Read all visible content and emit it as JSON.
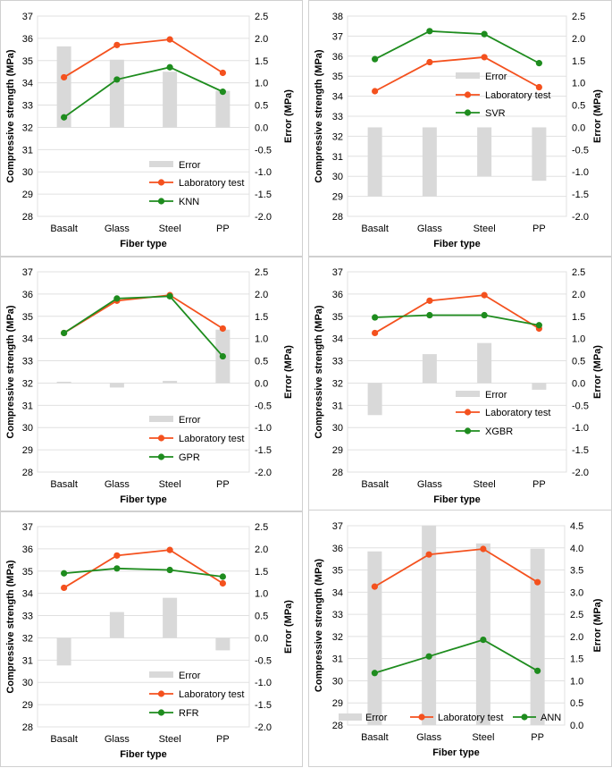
{
  "colors": {
    "error_bar": "#d9d9d9",
    "lab": "#f4511e",
    "model": "#1e8c1e",
    "grid": "#e0e0e0"
  },
  "shared": {
    "categories": [
      "Basalt",
      "Glass",
      "Steel",
      "PP"
    ],
    "xlabel": "Fiber type",
    "ylabel_left": "Compressive strength (MPa)",
    "ylabel_right": "Error (MPa)",
    "lab_label": "Laboratory test",
    "error_label": "Error"
  },
  "chart_data": [
    {
      "type": "bar+line",
      "model": "KNN",
      "categories": [
        "Basalt",
        "Glass",
        "Steel",
        "PP"
      ],
      "left_ticks": [
        "28",
        "29",
        "30",
        "31",
        "32",
        "33",
        "34",
        "35",
        "36",
        "37"
      ],
      "right_ticks": [
        "-2.0",
        "-1.5",
        "-1.0",
        "-0.5",
        "0.0",
        "0.5",
        "1.0",
        "1.5",
        "2.0",
        "2.5"
      ],
      "ylim_left": [
        28,
        37
      ],
      "ylim_right": [
        -2.0,
        2.5
      ],
      "series": [
        {
          "name": "Error",
          "kind": "bar",
          "axis": "right",
          "values": [
            1.82,
            1.52,
            1.25,
            0.82
          ]
        },
        {
          "name": "Laboratory test",
          "kind": "line",
          "axis": "left",
          "values": [
            34.25,
            35.7,
            35.95,
            34.45
          ]
        },
        {
          "name": "KNN",
          "kind": "line",
          "axis": "left",
          "values": [
            32.45,
            34.15,
            34.7,
            33.6
          ]
        }
      ],
      "legend": "lower-center"
    },
    {
      "type": "bar+line",
      "model": "SVR",
      "categories": [
        "Basalt",
        "Glass",
        "Steel",
        "PP"
      ],
      "left_ticks": [
        "28",
        "29",
        "30",
        "31",
        "32",
        "33",
        "34",
        "35",
        "36",
        "37",
        "38"
      ],
      "right_ticks": [
        "-2.0",
        "-1.5",
        "-1.0",
        "-0.5",
        "0.0",
        "0.5",
        "1.0",
        "1.5",
        "2.0",
        "2.5"
      ],
      "ylim_left": [
        28,
        38
      ],
      "ylim_right": [
        -2.0,
        2.5
      ],
      "series": [
        {
          "name": "Error",
          "kind": "bar",
          "axis": "right",
          "values": [
            -1.55,
            -1.55,
            -1.1,
            -1.2
          ]
        },
        {
          "name": "Laboratory test",
          "kind": "line",
          "axis": "left",
          "values": [
            34.25,
            35.7,
            35.95,
            34.45
          ]
        },
        {
          "name": "SVR",
          "kind": "line",
          "axis": "left",
          "values": [
            35.85,
            37.25,
            37.1,
            35.65
          ]
        }
      ],
      "legend": "upper-center"
    },
    {
      "type": "bar+line",
      "model": "GPR",
      "categories": [
        "Basalt",
        "Glass",
        "Steel",
        "PP"
      ],
      "left_ticks": [
        "28",
        "29",
        "30",
        "31",
        "32",
        "33",
        "34",
        "35",
        "36",
        "37"
      ],
      "right_ticks": [
        "-2.0",
        "-1.5",
        "-1.0",
        "-0.5",
        "0.0",
        "0.5",
        "1.0",
        "1.5",
        "2.0",
        "2.5"
      ],
      "ylim_left": [
        28,
        37
      ],
      "ylim_right": [
        -2.0,
        2.5
      ],
      "series": [
        {
          "name": "Error",
          "kind": "bar",
          "axis": "right",
          "values": [
            0.03,
            -0.1,
            0.05,
            1.2
          ]
        },
        {
          "name": "Laboratory test",
          "kind": "line",
          "axis": "left",
          "values": [
            34.25,
            35.7,
            35.95,
            34.45
          ]
        },
        {
          "name": "GPR",
          "kind": "line",
          "axis": "left",
          "values": [
            34.25,
            35.8,
            35.9,
            33.2
          ]
        }
      ],
      "legend": "lower-center"
    },
    {
      "type": "bar+line",
      "model": "XGBR",
      "categories": [
        "Basalt",
        "Glass",
        "Steel",
        "PP"
      ],
      "left_ticks": [
        "28",
        "29",
        "30",
        "31",
        "32",
        "33",
        "34",
        "35",
        "36",
        "37"
      ],
      "right_ticks": [
        "-2.0",
        "-1.5",
        "-1.0",
        "-0.5",
        "0.0",
        "0.5",
        "1.0",
        "1.5",
        "2.0",
        "2.5"
      ],
      "ylim_left": [
        28,
        37
      ],
      "ylim_right": [
        -2.0,
        2.5
      ],
      "series": [
        {
          "name": "Error",
          "kind": "bar",
          "axis": "right",
          "values": [
            -0.72,
            0.65,
            0.9,
            -0.15
          ]
        },
        {
          "name": "Laboratory test",
          "kind": "line",
          "axis": "left",
          "values": [
            34.25,
            35.7,
            35.95,
            34.45
          ]
        },
        {
          "name": "XGBR",
          "kind": "line",
          "axis": "left",
          "values": [
            34.95,
            35.05,
            35.05,
            34.6
          ]
        }
      ],
      "legend": "lower-center"
    },
    {
      "type": "bar+line",
      "model": "RFR",
      "categories": [
        "Basalt",
        "Glass",
        "Steel",
        "PP"
      ],
      "left_ticks": [
        "28",
        "29",
        "30",
        "31",
        "32",
        "33",
        "34",
        "35",
        "36",
        "37"
      ],
      "right_ticks": [
        "-2.0",
        "-1.5",
        "-1.0",
        "-0.5",
        "0.0",
        "0.5",
        "1.0",
        "1.5",
        "2.0",
        "2.5"
      ],
      "ylim_left": [
        28,
        37
      ],
      "ylim_right": [
        -2.0,
        2.5
      ],
      "series": [
        {
          "name": "Error",
          "kind": "bar",
          "axis": "right",
          "values": [
            -0.62,
            0.58,
            0.9,
            -0.28
          ]
        },
        {
          "name": "Laboratory test",
          "kind": "line",
          "axis": "left",
          "values": [
            34.25,
            35.7,
            35.95,
            34.45
          ]
        },
        {
          "name": "RFR",
          "kind": "line",
          "axis": "left",
          "values": [
            34.9,
            35.12,
            35.05,
            34.75
          ]
        }
      ],
      "legend": "lower-center"
    },
    {
      "type": "bar+line",
      "model": "ANN",
      "categories": [
        "Basalt",
        "Glass",
        "Steel",
        "PP"
      ],
      "left_ticks": [
        "28",
        "29",
        "30",
        "31",
        "32",
        "33",
        "34",
        "35",
        "36",
        "37"
      ],
      "right_ticks": [
        "0.0",
        "0.5",
        "1.0",
        "1.5",
        "2.0",
        "2.5",
        "3.0",
        "3.5",
        "4.0",
        "4.5"
      ],
      "ylim_left": [
        28,
        37
      ],
      "ylim_right": [
        0.0,
        4.5
      ],
      "series": [
        {
          "name": "Error",
          "kind": "bar",
          "axis": "right",
          "values": [
            3.92,
            4.5,
            4.1,
            3.98
          ]
        },
        {
          "name": "Laboratory test",
          "kind": "line",
          "axis": "left",
          "values": [
            34.25,
            35.7,
            35.95,
            34.45
          ]
        },
        {
          "name": "ANN",
          "kind": "line",
          "axis": "left",
          "values": [
            30.35,
            31.1,
            31.85,
            30.45
          ]
        }
      ],
      "legend": "bottom-row"
    }
  ]
}
